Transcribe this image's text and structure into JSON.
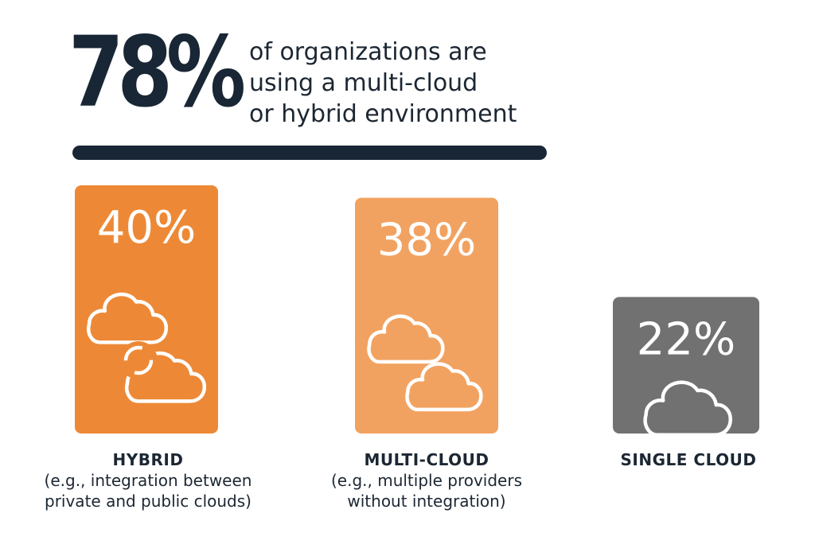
{
  "headline": {
    "value": "78%",
    "lines": [
      "of organizations are",
      "using a multi-cloud",
      "or hybrid environment"
    ]
  },
  "colors": {
    "hybrid": "#ed8936",
    "multi_cloud": "#f2a260",
    "single_cloud": "#717171",
    "text": "#182635",
    "icon": "#ffffff"
  },
  "chart_data": {
    "type": "bar",
    "categories": [
      "HYBRID",
      "MULTI-CLOUD",
      "SINGLE CLOUD"
    ],
    "values": [
      40,
      38,
      22
    ],
    "value_labels": [
      "40%",
      "38%",
      "22%"
    ],
    "descriptions": [
      [
        "(e.g., integration between",
        "private and public clouds)"
      ],
      [
        "(e.g., multiple providers",
        "without integration)"
      ],
      []
    ],
    "icons": [
      "hybrid-clouds-sync-icon",
      "two-clouds-icon",
      "single-cloud-icon"
    ],
    "title": "",
    "xlabel": "",
    "ylabel": ""
  }
}
